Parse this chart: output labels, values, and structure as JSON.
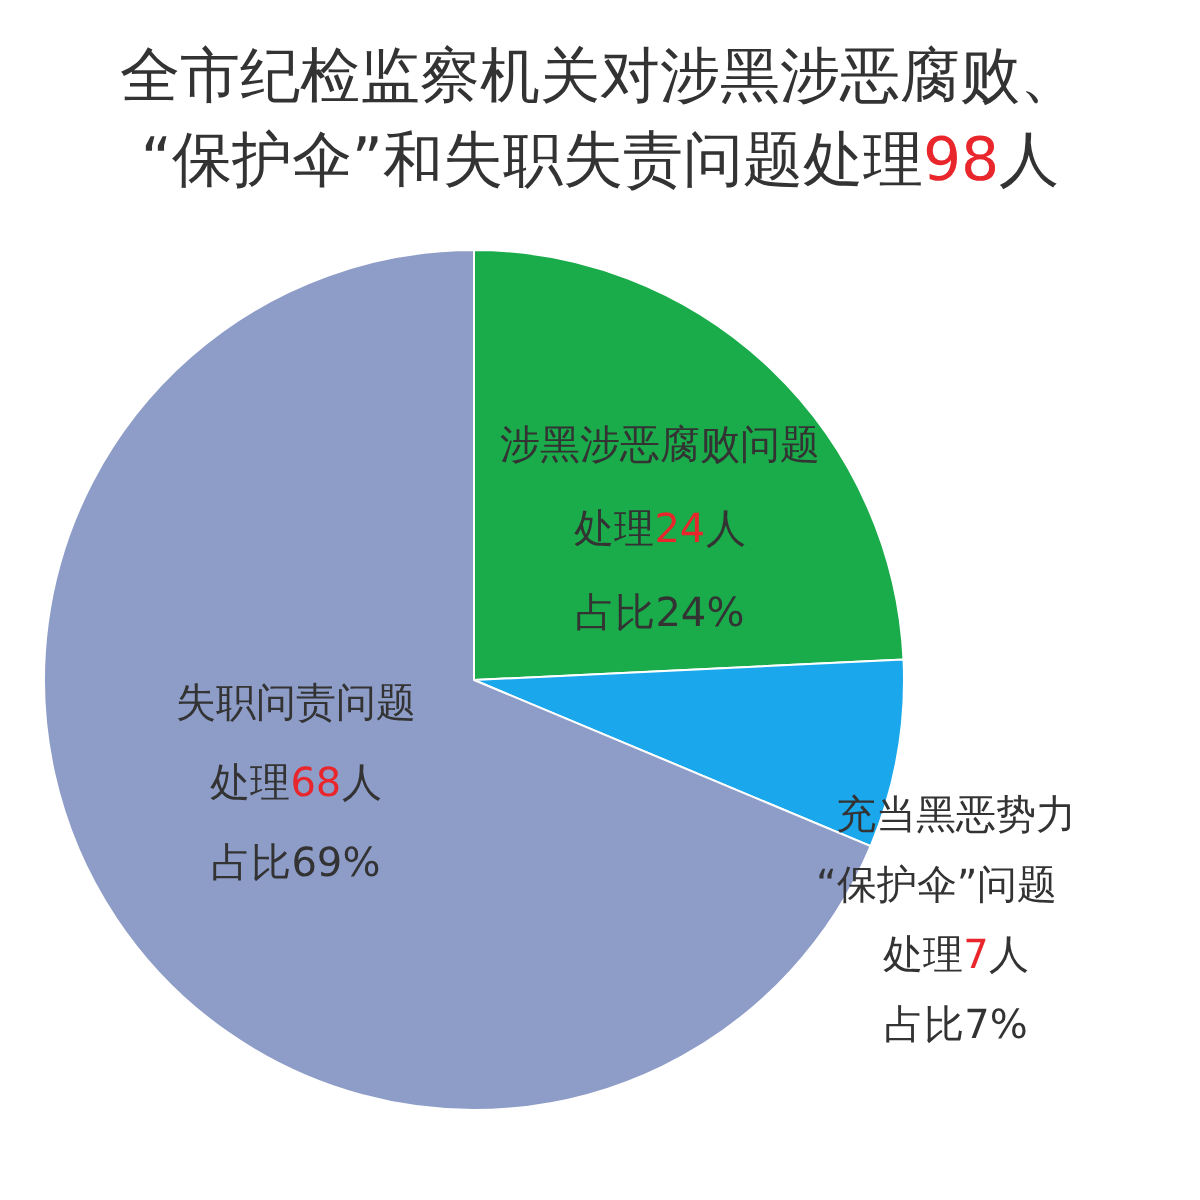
{
  "chart_data": {
    "type": "pie",
    "title": "全市纪检监察机关对涉黑涉恶腐败、“保护伞”和失职失责问题处理98人",
    "categories": [
      "涉黑涉恶腐败问题",
      "充当黑恶势力“保护伞”问题",
      "失职问责问题"
    ],
    "values": [
      24,
      7,
      68
    ],
    "colors": [
      "#1aab4a",
      "#1aa7ec",
      "#8e9dc8"
    ],
    "value_labels": [
      "处理24人占比24%",
      "处理7人占比7%",
      "处理68人占比69%"
    ]
  }
}
